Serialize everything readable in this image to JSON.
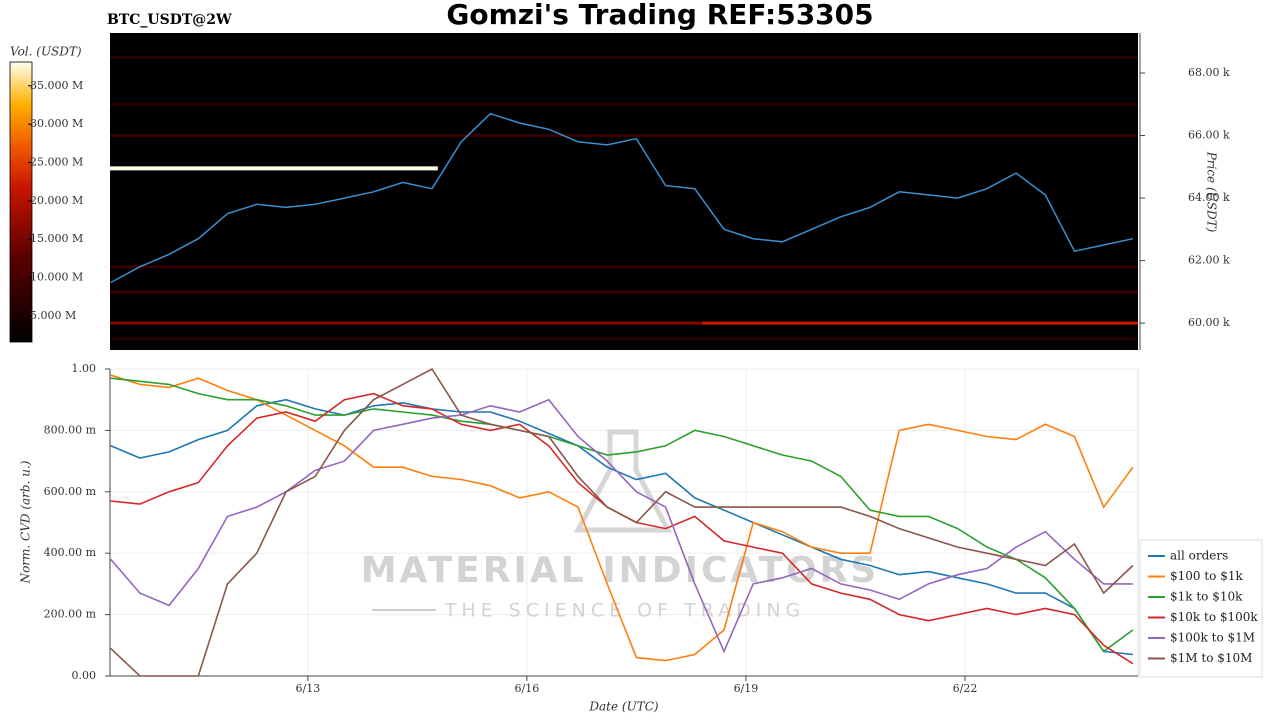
{
  "chart_data": [
    {
      "type": "heatmap",
      "title": "Gomzi's Trading REF:53305",
      "subtitle": "BTC_USDT@2W",
      "ylabel": "Price (USDT)",
      "colorbar_label": "Vol. (USDT)",
      "xlim": [
        10.29,
        24.37
      ],
      "ylim": [
        59140,
        69280
      ],
      "yticks": [
        {
          "value": 60000,
          "label": "60.00 k"
        },
        {
          "value": 62000,
          "label": "62.00 k"
        },
        {
          "value": 64000,
          "label": "64.00 k"
        },
        {
          "value": 66000,
          "label": "66.00 k"
        },
        {
          "value": 68000,
          "label": "68.00 k"
        }
      ],
      "clim": [
        1600000,
        38100000
      ],
      "cticks": [
        {
          "value": 5000000,
          "label": "5.000 M"
        },
        {
          "value": 10000000,
          "label": "10.000 M"
        },
        {
          "value": 15000000,
          "label": "15.000 M"
        },
        {
          "value": 20000000,
          "label": "20.000 M"
        },
        {
          "value": 25000000,
          "label": "25.000 M"
        },
        {
          "value": 30000000,
          "label": "30.000 M"
        },
        {
          "value": 35000000,
          "label": "35.000 M"
        }
      ],
      "levels": {
        "price": [
          59500,
          60000,
          60000,
          61000,
          61800,
          66000,
          67000,
          68500,
          64950
        ],
        "volume": [
          6000000,
          16000000,
          22000000,
          9000000,
          8000000,
          8000000,
          7000000,
          7000000,
          38000000
        ],
        "x_start": [
          10.29,
          10.29,
          18.4,
          10.29,
          10.29,
          10.29,
          10.29,
          10.29,
          10.29
        ],
        "x_end": [
          24.37,
          18.4,
          24.37,
          24.37,
          24.37,
          24.37,
          24.37,
          24.37,
          14.78
        ]
      },
      "x": [
        10.3,
        10.7,
        11.1,
        11.5,
        11.9,
        12.3,
        12.7,
        13.1,
        13.5,
        13.9,
        14.3,
        14.7,
        15.1,
        15.5,
        15.9,
        16.3,
        16.7,
        17.1,
        17.5,
        17.9,
        18.3,
        18.7,
        19.1,
        19.5,
        19.9,
        20.3,
        20.7,
        21.1,
        21.5,
        21.9,
        22.3,
        22.7,
        23.1,
        23.5,
        23.9,
        24.3
      ],
      "values": [
        61300,
        61800,
        62200,
        62700,
        63500,
        63800,
        63700,
        63800,
        64000,
        64200,
        64500,
        64300,
        65800,
        66700,
        66400,
        66200,
        65800,
        65700,
        65900,
        64400,
        64300,
        63000,
        62700,
        62600,
        63000,
        63400,
        63700,
        64200,
        64100,
        64000,
        64300,
        64800,
        64100,
        62300,
        62500,
        62700
      ],
      "color": "#3a8fd0"
    },
    {
      "type": "line",
      "xlabel": "Date (UTC)",
      "ylabel": "Norm. CVD (arb. u.)",
      "watermark": [
        "MATERIAL INDICATORS",
        "THE SCIENCE OF TRADING"
      ],
      "xlim": [
        10.29,
        24.37
      ],
      "xticks": [
        {
          "value": 13,
          "label": "6/13"
        },
        {
          "value": 16,
          "label": "6/16"
        },
        {
          "value": 19,
          "label": "6/19"
        },
        {
          "value": 22,
          "label": "6/22"
        }
      ],
      "ylim": [
        0,
        1
      ],
      "yticks": [
        {
          "value": 0,
          "label": "0.00"
        },
        {
          "value": 0.2,
          "label": "200.00 m"
        },
        {
          "value": 0.4,
          "label": "400.00 m"
        },
        {
          "value": 0.6,
          "label": "600.00 m"
        },
        {
          "value": 0.8,
          "label": "800.00 m"
        },
        {
          "value": 1,
          "label": "1.00"
        }
      ],
      "grid": true,
      "legend": "right",
      "x": [
        10.3,
        10.7,
        11.1,
        11.5,
        11.9,
        12.3,
        12.7,
        13.1,
        13.5,
        13.9,
        14.3,
        14.7,
        15.1,
        15.5,
        15.9,
        16.3,
        16.7,
        17.1,
        17.5,
        17.9,
        18.3,
        18.7,
        19.1,
        19.5,
        19.9,
        20.3,
        20.7,
        21.1,
        21.5,
        21.9,
        22.3,
        22.7,
        23.1,
        23.5,
        23.9,
        24.3
      ],
      "series": [
        {
          "name": "all orders",
          "color": "#1f77b4",
          "values": [
            0.75,
            0.71,
            0.73,
            0.77,
            0.8,
            0.88,
            0.9,
            0.87,
            0.85,
            0.88,
            0.89,
            0.87,
            0.86,
            0.86,
            0.83,
            0.79,
            0.75,
            0.68,
            0.64,
            0.66,
            0.58,
            0.54,
            0.5,
            0.46,
            0.42,
            0.38,
            0.36,
            0.33,
            0.34,
            0.32,
            0.3,
            0.27,
            0.27,
            0.22,
            0.08,
            0.07
          ]
        },
        {
          "name": "$100 to $1k",
          "color": "#ff7f0e",
          "values": [
            0.98,
            0.95,
            0.94,
            0.97,
            0.93,
            0.9,
            0.85,
            0.8,
            0.75,
            0.68,
            0.68,
            0.65,
            0.64,
            0.62,
            0.58,
            0.6,
            0.55,
            0.3,
            0.06,
            0.05,
            0.07,
            0.15,
            0.5,
            0.47,
            0.42,
            0.4,
            0.4,
            0.8,
            0.82,
            0.8,
            0.78,
            0.77,
            0.82,
            0.78,
            0.55,
            0.68
          ]
        },
        {
          "name": "$1k to $10k",
          "color": "#2ca02c",
          "values": [
            0.97,
            0.96,
            0.95,
            0.92,
            0.9,
            0.9,
            0.88,
            0.85,
            0.85,
            0.87,
            0.86,
            0.85,
            0.83,
            0.82,
            0.8,
            0.78,
            0.75,
            0.72,
            0.73,
            0.75,
            0.8,
            0.78,
            0.75,
            0.72,
            0.7,
            0.65,
            0.54,
            0.52,
            0.52,
            0.48,
            0.42,
            0.38,
            0.32,
            0.22,
            0.08,
            0.15
          ]
        },
        {
          "name": "$10k to $100k",
          "color": "#d62728",
          "values": [
            0.57,
            0.56,
            0.6,
            0.63,
            0.75,
            0.84,
            0.86,
            0.83,
            0.9,
            0.92,
            0.88,
            0.87,
            0.82,
            0.8,
            0.82,
            0.75,
            0.63,
            0.55,
            0.5,
            0.48,
            0.52,
            0.44,
            0.42,
            0.4,
            0.3,
            0.27,
            0.25,
            0.2,
            0.18,
            0.2,
            0.22,
            0.2,
            0.22,
            0.2,
            0.1,
            0.04
          ]
        },
        {
          "name": "$100k to $1M",
          "color": "#9467bd",
          "values": [
            0.38,
            0.27,
            0.23,
            0.35,
            0.52,
            0.55,
            0.6,
            0.67,
            0.7,
            0.8,
            0.82,
            0.84,
            0.85,
            0.88,
            0.86,
            0.9,
            0.78,
            0.7,
            0.6,
            0.55,
            0.3,
            0.08,
            0.3,
            0.32,
            0.35,
            0.3,
            0.28,
            0.25,
            0.3,
            0.33,
            0.35,
            0.42,
            0.47,
            0.38,
            0.3,
            0.3
          ]
        },
        {
          "name": "$1M to $10M",
          "color": "#8c564b",
          "values": [
            0.09,
            0,
            0,
            0,
            0.3,
            0.4,
            0.6,
            0.65,
            0.8,
            0.9,
            0.95,
            1,
            0.85,
            0.82,
            0.8,
            0.78,
            0.65,
            0.55,
            0.5,
            0.6,
            0.55,
            0.55,
            0.55,
            0.55,
            0.55,
            0.55,
            0.52,
            0.48,
            0.45,
            0.42,
            0.4,
            0.38,
            0.36,
            0.43,
            0.27,
            0.36
          ]
        }
      ]
    }
  ]
}
